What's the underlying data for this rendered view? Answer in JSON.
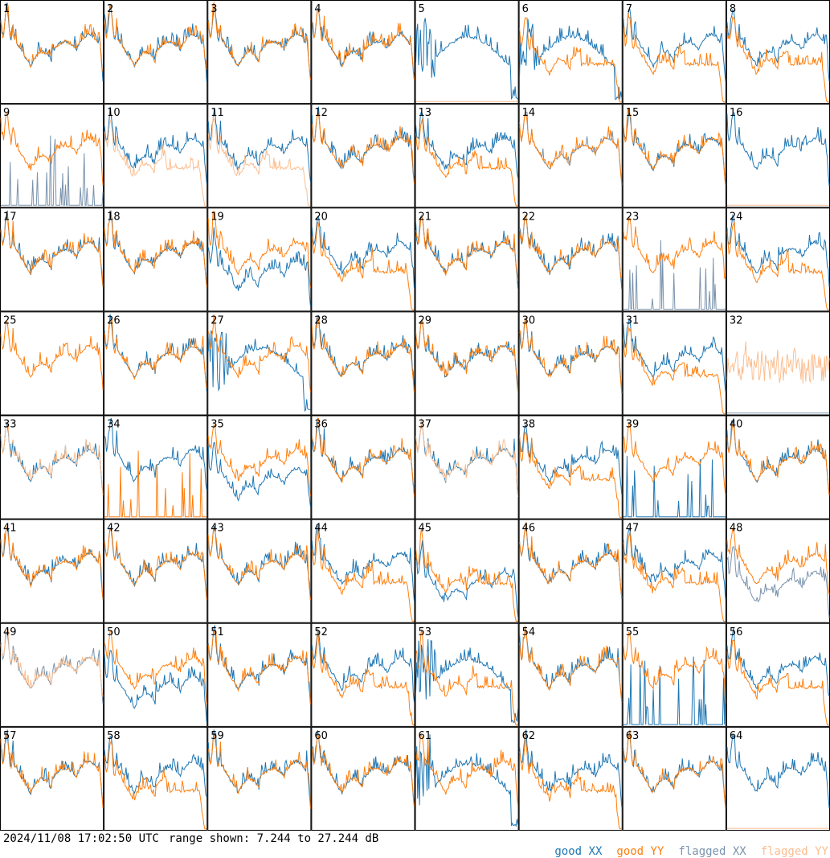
{
  "footer": {
    "timestamp": "2024/11/08 17:02:50 UTC",
    "range_text": "range shown: 7.244 to 27.244 dB"
  },
  "legend": [
    {
      "label": "good XX",
      "color": "#1f77b4"
    },
    {
      "label": "good YY",
      "color": "#ff7f0e"
    },
    {
      "label": "flagged XX",
      "color": "#7a93ad"
    },
    {
      "label": "flagged YY",
      "color": "#fbbe90"
    }
  ],
  "chart_data": {
    "type": "line",
    "grid_rows": 8,
    "grid_cols": 8,
    "y_range_db": [
      7.244,
      27.244
    ],
    "series_names": [
      "good XX",
      "good YY",
      "flagged XX",
      "flagged YY"
    ],
    "colors": {
      "XX": "#1f77b4",
      "YY": "#ff7f0e",
      "fXX": "#7a93ad",
      "fYY": "#fbbe90"
    },
    "panels": [
      {
        "id": "1",
        "xx": "good",
        "yy": "good",
        "x_shape": "normal",
        "y_shape": "normal"
      },
      {
        "id": "2",
        "xx": "good",
        "yy": "good",
        "x_shape": "normal",
        "y_shape": "normal"
      },
      {
        "id": "3",
        "xx": "good",
        "yy": "good",
        "x_shape": "normal",
        "y_shape": "normal"
      },
      {
        "id": "4",
        "xx": "good",
        "yy": "good",
        "x_shape": "normal",
        "y_shape": "normal"
      },
      {
        "id": "5",
        "xx": "good",
        "yy": "flagged",
        "x_shape": "hump",
        "y_shape": "dead"
      },
      {
        "id": "6",
        "xx": "good",
        "yy": "good",
        "x_shape": "hump",
        "y_shape": "droop"
      },
      {
        "id": "7",
        "xx": "good",
        "yy": "good",
        "x_shape": "normal",
        "y_shape": "droop"
      },
      {
        "id": "8",
        "xx": "good",
        "yy": "good",
        "x_shape": "normal",
        "y_shape": "droop"
      },
      {
        "id": "9",
        "xx": "flagged",
        "yy": "good",
        "x_shape": "spikes",
        "y_shape": "normal"
      },
      {
        "id": "10",
        "xx": "good",
        "yy": "flagged",
        "x_shape": "normal",
        "y_shape": "droop"
      },
      {
        "id": "11",
        "xx": "good",
        "yy": "flagged",
        "x_shape": "normal",
        "y_shape": "droop"
      },
      {
        "id": "12",
        "xx": "good",
        "yy": "good",
        "x_shape": "normal",
        "y_shape": "normal"
      },
      {
        "id": "13",
        "xx": "good",
        "yy": "good",
        "x_shape": "normal",
        "y_shape": "droop"
      },
      {
        "id": "14",
        "xx": "flagged",
        "yy": "good",
        "x_shape": "normal",
        "y_shape": "normal"
      },
      {
        "id": "15",
        "xx": "good",
        "yy": "good",
        "x_shape": "normal",
        "y_shape": "normal"
      },
      {
        "id": "16",
        "xx": "good",
        "yy": "flagged",
        "x_shape": "normal",
        "y_shape": "dead"
      },
      {
        "id": "17",
        "xx": "good",
        "yy": "good",
        "x_shape": "normal",
        "y_shape": "normal"
      },
      {
        "id": "18",
        "xx": "good",
        "yy": "good",
        "x_shape": "normal",
        "y_shape": "normal"
      },
      {
        "id": "19",
        "xx": "good",
        "yy": "good",
        "x_shape": "low",
        "y_shape": "normal"
      },
      {
        "id": "20",
        "xx": "good",
        "yy": "good",
        "x_shape": "normal",
        "y_shape": "droop"
      },
      {
        "id": "21",
        "xx": "good",
        "yy": "good",
        "x_shape": "normal",
        "y_shape": "normal"
      },
      {
        "id": "22",
        "xx": "good",
        "yy": "good",
        "x_shape": "normal",
        "y_shape": "normal"
      },
      {
        "id": "23",
        "xx": "flagged",
        "yy": "good",
        "x_shape": "spikes",
        "y_shape": "normal"
      },
      {
        "id": "24",
        "xx": "good",
        "yy": "good",
        "x_shape": "normal",
        "y_shape": "droop"
      },
      {
        "id": "25",
        "xx": "good",
        "yy": "good",
        "x_shape": "hidden",
        "y_shape": "normal"
      },
      {
        "id": "26",
        "xx": "good",
        "yy": "good",
        "x_shape": "normal",
        "y_shape": "normal"
      },
      {
        "id": "27",
        "xx": "good",
        "yy": "good",
        "x_shape": "hump",
        "y_shape": "normal"
      },
      {
        "id": "28",
        "xx": "good",
        "yy": "good",
        "x_shape": "normal",
        "y_shape": "normal"
      },
      {
        "id": "29",
        "xx": "good",
        "yy": "good",
        "x_shape": "normal",
        "y_shape": "normal"
      },
      {
        "id": "30",
        "xx": "good",
        "yy": "good",
        "x_shape": "normal",
        "y_shape": "normal"
      },
      {
        "id": "31",
        "xx": "good",
        "yy": "good",
        "x_shape": "normal",
        "y_shape": "droop"
      },
      {
        "id": "32",
        "xx": "flagged",
        "yy": "flagged",
        "x_shape": "dead",
        "y_shape": "noisy"
      },
      {
        "id": "33",
        "xx": "good",
        "yy": "flagged",
        "x_shape": "normal",
        "y_shape": "normal"
      },
      {
        "id": "34",
        "xx": "good",
        "yy": "good",
        "x_shape": "normal",
        "y_shape": "spikes"
      },
      {
        "id": "35",
        "xx": "good",
        "yy": "good",
        "x_shape": "low",
        "y_shape": "normal"
      },
      {
        "id": "36",
        "xx": "good",
        "yy": "good",
        "x_shape": "normal",
        "y_shape": "normal"
      },
      {
        "id": "37",
        "xx": "good",
        "yy": "flagged",
        "x_shape": "normal",
        "y_shape": "normal"
      },
      {
        "id": "38",
        "xx": "good",
        "yy": "good",
        "x_shape": "normal",
        "y_shape": "droop"
      },
      {
        "id": "39",
        "xx": "good",
        "yy": "good",
        "x_shape": "spikes",
        "y_shape": "normal"
      },
      {
        "id": "40",
        "xx": "good",
        "yy": "good",
        "x_shape": "normal",
        "y_shape": "normal"
      },
      {
        "id": "41",
        "xx": "good",
        "yy": "good",
        "x_shape": "normal",
        "y_shape": "normal"
      },
      {
        "id": "42",
        "xx": "good",
        "yy": "good",
        "x_shape": "normal",
        "y_shape": "normal"
      },
      {
        "id": "43",
        "xx": "good",
        "yy": "good",
        "x_shape": "normal",
        "y_shape": "normal"
      },
      {
        "id": "44",
        "xx": "good",
        "yy": "good",
        "x_shape": "normal",
        "y_shape": "droop"
      },
      {
        "id": "45",
        "xx": "good",
        "yy": "good",
        "x_shape": "low",
        "y_shape": "droop"
      },
      {
        "id": "46",
        "xx": "good",
        "yy": "good",
        "x_shape": "normal",
        "y_shape": "normal"
      },
      {
        "id": "47",
        "xx": "good",
        "yy": "good",
        "x_shape": "normal",
        "y_shape": "droop"
      },
      {
        "id": "48",
        "xx": "flagged",
        "yy": "good",
        "x_shape": "low",
        "y_shape": "normal"
      },
      {
        "id": "49",
        "xx": "flagged",
        "yy": "flagged",
        "x_shape": "normal",
        "y_shape": "normal"
      },
      {
        "id": "50",
        "xx": "good",
        "yy": "good",
        "x_shape": "low",
        "y_shape": "normal"
      },
      {
        "id": "51",
        "xx": "good",
        "yy": "good",
        "x_shape": "normal",
        "y_shape": "normal"
      },
      {
        "id": "52",
        "xx": "good",
        "yy": "good",
        "x_shape": "normal",
        "y_shape": "droop"
      },
      {
        "id": "53",
        "xx": "good",
        "yy": "good",
        "x_shape": "hump",
        "y_shape": "droop"
      },
      {
        "id": "54",
        "xx": "good",
        "yy": "good",
        "x_shape": "normal",
        "y_shape": "normal"
      },
      {
        "id": "55",
        "xx": "good",
        "yy": "good",
        "x_shape": "spikes",
        "y_shape": "normal"
      },
      {
        "id": "56",
        "xx": "good",
        "yy": "good",
        "x_shape": "normal",
        "y_shape": "droop"
      },
      {
        "id": "57",
        "xx": "good",
        "yy": "good",
        "x_shape": "normal",
        "y_shape": "normal"
      },
      {
        "id": "58",
        "xx": "good",
        "yy": "good",
        "x_shape": "normal",
        "y_shape": "droop"
      },
      {
        "id": "59",
        "xx": "good",
        "yy": "good",
        "x_shape": "normal",
        "y_shape": "normal"
      },
      {
        "id": "60",
        "xx": "good",
        "yy": "good",
        "x_shape": "normal",
        "y_shape": "normal"
      },
      {
        "id": "61",
        "xx": "good",
        "yy": "good",
        "x_shape": "hump",
        "y_shape": "normal"
      },
      {
        "id": "62",
        "xx": "good",
        "yy": "good",
        "x_shape": "normal",
        "y_shape": "droop"
      },
      {
        "id": "63",
        "xx": "good",
        "yy": "good",
        "x_shape": "normal",
        "y_shape": "normal"
      },
      {
        "id": "64",
        "xx": "good",
        "yy": "flagged",
        "x_shape": "normal",
        "y_shape": "dead"
      }
    ]
  }
}
